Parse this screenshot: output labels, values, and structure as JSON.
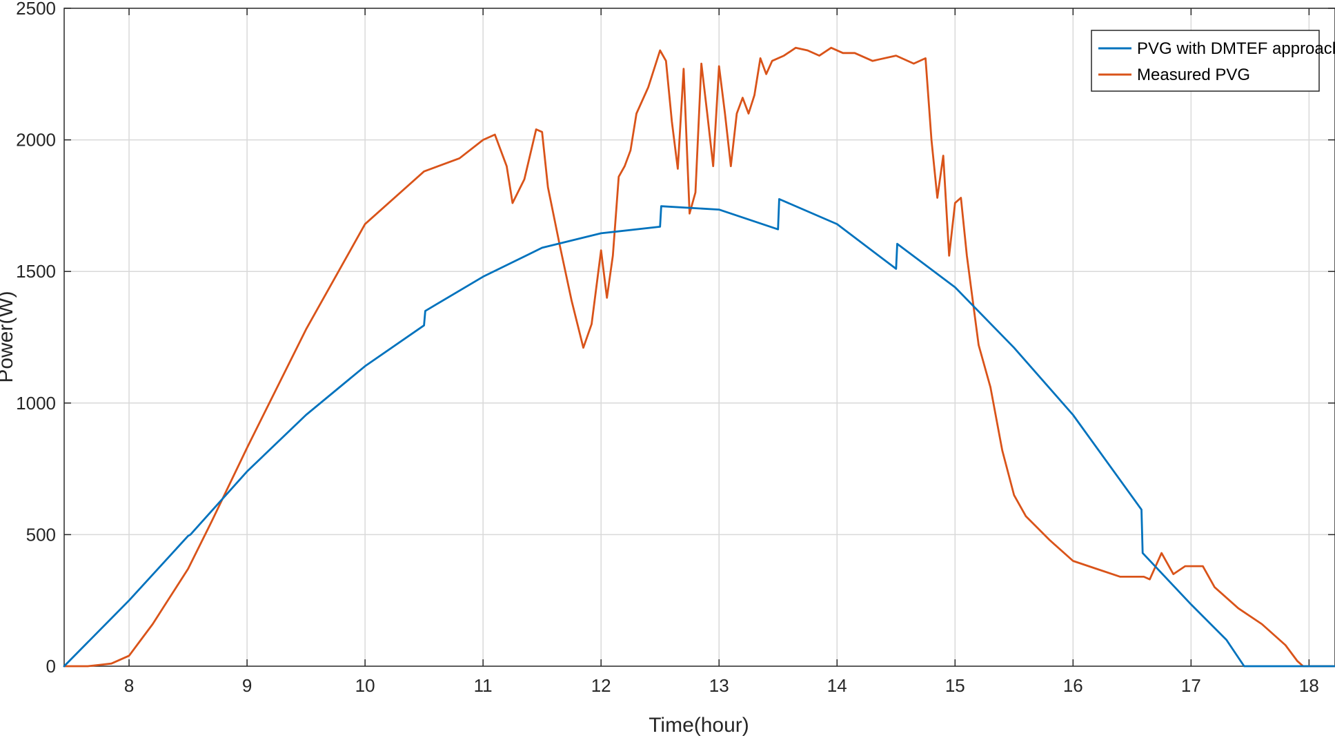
{
  "chart_data": {
    "type": "line",
    "title": "",
    "xlabel": "Time(hour)",
    "ylabel": "Power(W)",
    "xlim": [
      7.45,
      18.22
    ],
    "ylim": [
      0,
      2500
    ],
    "xticks": [
      8,
      9,
      10,
      11,
      12,
      13,
      14,
      15,
      16,
      17,
      18
    ],
    "yticks": [
      0,
      500,
      1000,
      1500,
      2000,
      2500
    ],
    "grid": true,
    "legend_position": "top-right",
    "colors": {
      "PVG with DMTEF approach": "#0072BD",
      "Measured PVG": "#D95319"
    },
    "series": [
      {
        "name": "PVG with DMTEF approach",
        "x": [
          7.45,
          8.0,
          8.5,
          8.52,
          9.0,
          9.5,
          10.0,
          10.5,
          10.51,
          11.0,
          11.5,
          12.0,
          12.5,
          12.51,
          13.0,
          13.5,
          13.51,
          14.0,
          14.5,
          14.51,
          15.0,
          15.5,
          16.0,
          16.58,
          16.59,
          17.0,
          17.3,
          17.45,
          18.22
        ],
        "y": [
          0,
          250,
          495,
          500,
          740,
          955,
          1140,
          1295,
          1350,
          1480,
          1590,
          1645,
          1670,
          1748,
          1735,
          1660,
          1775,
          1680,
          1510,
          1605,
          1440,
          1210,
          955,
          595,
          430,
          235,
          100,
          0,
          0
        ]
      },
      {
        "name": "Measured PVG",
        "x": [
          7.45,
          7.65,
          7.75,
          7.85,
          8.0,
          8.1,
          8.2,
          8.3,
          8.5,
          8.7,
          9.0,
          9.5,
          10.0,
          10.5,
          10.8,
          11.0,
          11.1,
          11.2,
          11.25,
          11.35,
          11.45,
          11.5,
          11.55,
          11.65,
          11.75,
          11.85,
          11.92,
          12.0,
          12.05,
          12.1,
          12.15,
          12.2,
          12.25,
          12.3,
          12.4,
          12.5,
          12.55,
          12.6,
          12.65,
          12.7,
          12.75,
          12.8,
          12.85,
          12.9,
          12.95,
          13.0,
          13.05,
          13.1,
          13.15,
          13.2,
          13.25,
          13.3,
          13.35,
          13.4,
          13.45,
          13.55,
          13.65,
          13.75,
          13.85,
          13.95,
          14.05,
          14.15,
          14.3,
          14.5,
          14.65,
          14.75,
          14.8,
          14.85,
          14.9,
          14.95,
          15.0,
          15.05,
          15.1,
          15.15,
          15.2,
          15.3,
          15.4,
          15.5,
          15.6,
          15.8,
          16.0,
          16.2,
          16.4,
          16.6,
          16.65,
          16.75,
          16.85,
          16.95,
          17.1,
          17.2,
          17.4,
          17.6,
          17.8,
          17.9,
          17.95,
          18.22
        ],
        "y": [
          0,
          0,
          5,
          10,
          40,
          100,
          160,
          230,
          370,
          550,
          830,
          1280,
          1680,
          1880,
          1930,
          2000,
          2020,
          1900,
          1760,
          1850,
          2040,
          2030,
          1820,
          1600,
          1390,
          1210,
          1300,
          1580,
          1400,
          1560,
          1860,
          1900,
          1960,
          2100,
          2200,
          2340,
          2300,
          2070,
          1890,
          2270,
          1720,
          1800,
          2290,
          2100,
          1900,
          2280,
          2100,
          1900,
          2100,
          2160,
          2100,
          2170,
          2310,
          2250,
          2300,
          2320,
          2350,
          2340,
          2320,
          2350,
          2330,
          2330,
          2300,
          2320,
          2290,
          2310,
          2000,
          1780,
          1940,
          1560,
          1760,
          1780,
          1560,
          1390,
          1220,
          1060,
          820,
          650,
          570,
          480,
          400,
          370,
          340,
          340,
          330,
          430,
          350,
          380,
          380,
          300,
          220,
          160,
          80,
          20,
          0,
          0
        ]
      }
    ]
  }
}
